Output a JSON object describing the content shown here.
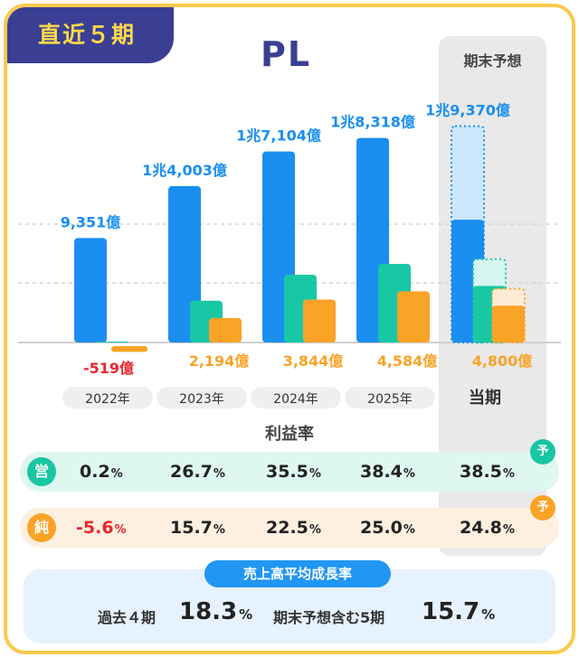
{
  "badge": "直近５期",
  "title": "PL",
  "forecast_header": "期末予想",
  "colors": {
    "sales": "#1a8ff0",
    "sales_forecast": "#cce7fb",
    "operating": "#18c8a5",
    "operating_forecast": "#d6f6ef",
    "net": "#f9a327",
    "net_forecast": "#fdebd6",
    "navy": "#3a3f94",
    "negative": "#e8262b"
  },
  "chart_data": {
    "type": "bar",
    "categories": [
      "2022年",
      "2023年",
      "2024年",
      "2025年",
      "当期"
    ],
    "series": [
      {
        "key": "sales",
        "values": [
          9351,
          14003,
          17104,
          18318,
          19370
        ],
        "labels": [
          "9,351億",
          "1兆4,003億",
          "1兆7,104億",
          "1兆8,318億",
          "1兆9,370億"
        ]
      },
      {
        "key": "operating",
        "values": [
          19,
          3737,
          6072,
          7034,
          7457
        ]
      },
      {
        "key": "net",
        "values": [
          -519,
          2194,
          3844,
          4584,
          4800
        ],
        "labels": [
          "-519億",
          "2,194億",
          "3,844億",
          "4,584億",
          "4,800億"
        ]
      }
    ],
    "forecast_category": "当期",
    "unit": "億円"
  },
  "ratios": {
    "title": "利益率",
    "operating": {
      "icon": "営",
      "values": [
        "0.2",
        "26.7",
        "35.5",
        "38.4",
        "38.5"
      ]
    },
    "net": {
      "icon": "純",
      "values": [
        "-5.6",
        "15.7",
        "22.5",
        "25.0",
        "24.8"
      ]
    },
    "unit": "%",
    "forecast_badge": "予"
  },
  "growth": {
    "title": "売上高平均成長率",
    "past_label": "過去４期",
    "past_value": "18.3",
    "forecast_label": "期末予想含む5期",
    "forecast_value": "15.7",
    "unit": "%"
  }
}
